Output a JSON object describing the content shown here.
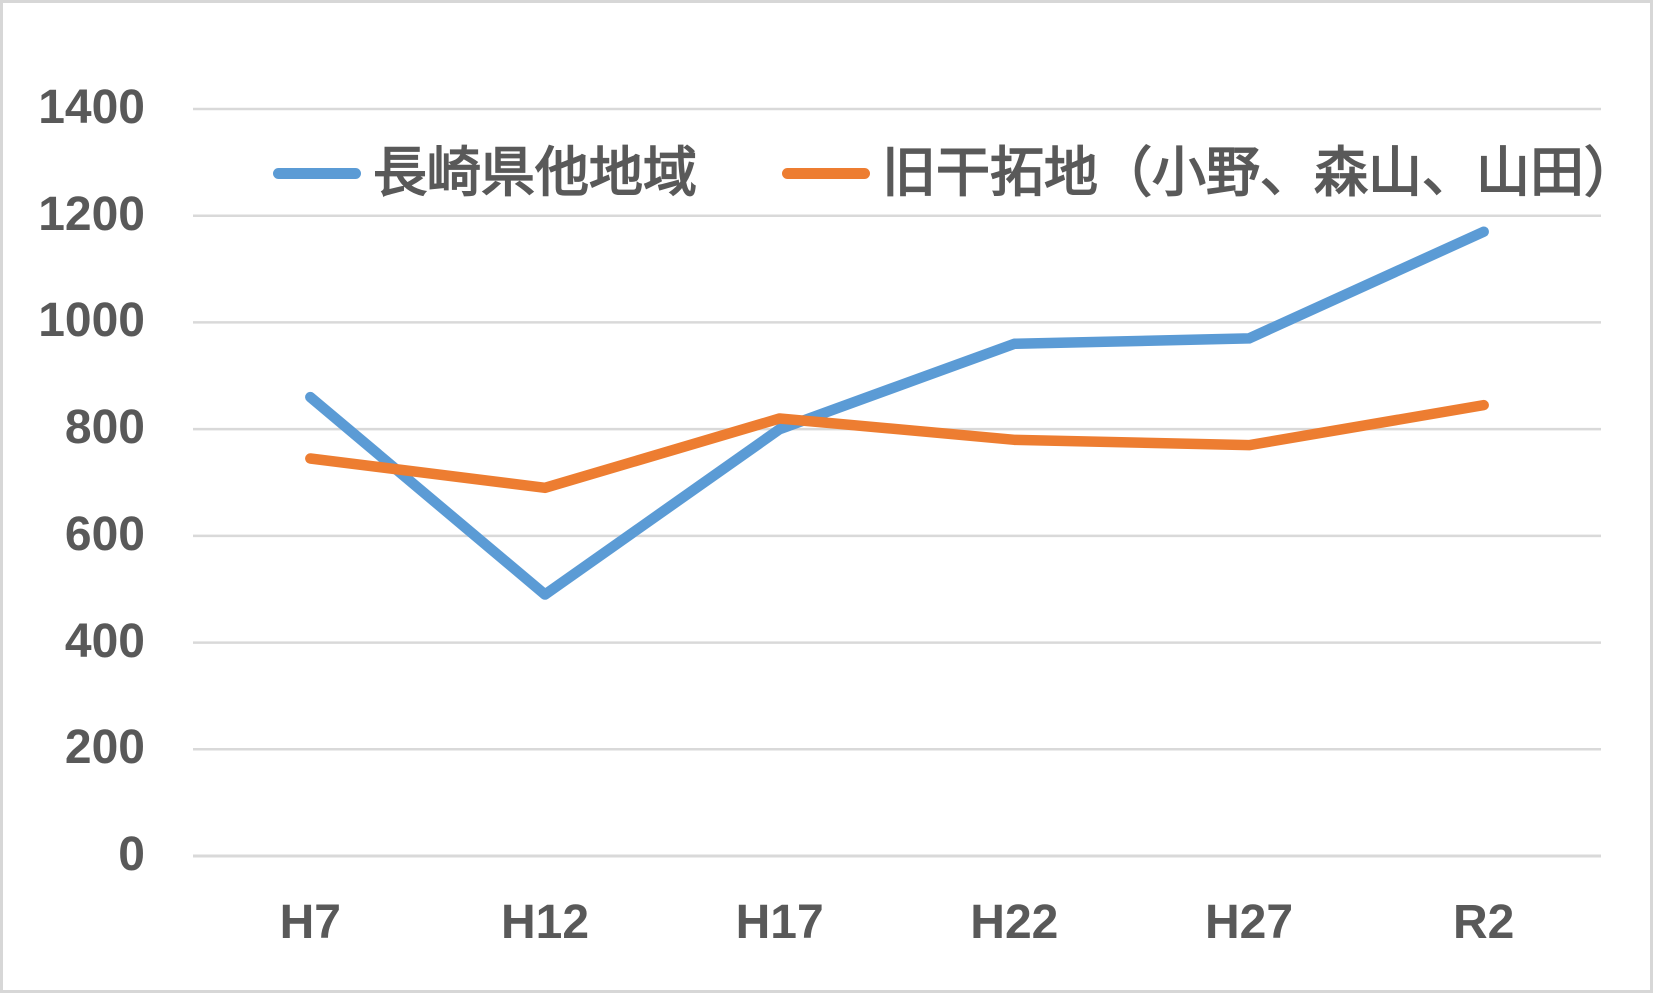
{
  "chart_data": {
    "type": "line",
    "categories": [
      "H7",
      "H12",
      "H17",
      "H22",
      "H27",
      "R2"
    ],
    "series": [
      {
        "name": "長崎県他地域",
        "color": "#5B9BD5",
        "values": [
          860,
          490,
          800,
          960,
          970,
          1170
        ]
      },
      {
        "name": "旧干拓地（小野、森山、山田）",
        "color": "#ED7D31",
        "values": [
          745,
          690,
          820,
          780,
          770,
          845
        ]
      }
    ],
    "title": "",
    "xlabel": "",
    "ylabel": "",
    "ylim": [
      0,
      1400
    ],
    "yticks": [
      0,
      200,
      400,
      600,
      800,
      1000,
      1200,
      1400
    ],
    "grid": true,
    "legend_position": "top-center",
    "gridline_color": "#D9D9D9",
    "tick_label_color": "#595959",
    "background_color": "#FFFFFF",
    "border_color": "#D7D7D7"
  }
}
